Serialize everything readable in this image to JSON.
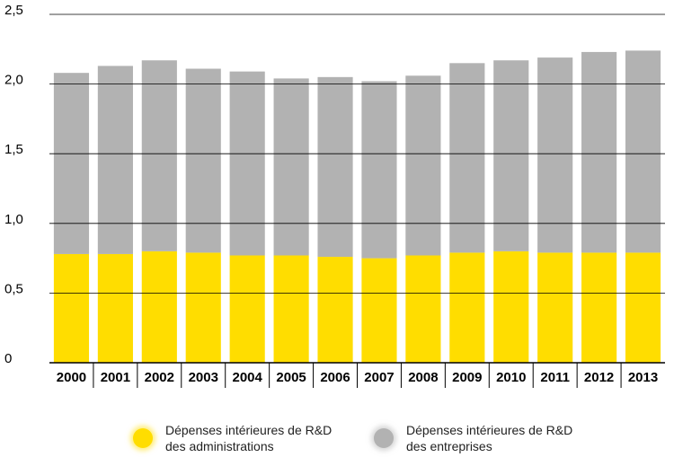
{
  "chart_data": {
    "type": "stacked_bar",
    "categories": [
      "2000",
      "2001",
      "2002",
      "2003",
      "2004",
      "2005",
      "2006",
      "2007",
      "2008",
      "2009",
      "2010",
      "2011",
      "2012",
      "2013"
    ],
    "series": [
      {
        "name": "Dépenses intérieures de R&D des administrations",
        "color": "#ffdd00",
        "values": [
          0.78,
          0.78,
          0.8,
          0.79,
          0.77,
          0.77,
          0.76,
          0.75,
          0.77,
          0.79,
          0.8,
          0.79,
          0.79,
          0.79
        ]
      },
      {
        "name": "Dépenses intérieures de R&D des entreprises",
        "color": "#b2b2b2",
        "values": [
          1.3,
          1.35,
          1.37,
          1.32,
          1.32,
          1.27,
          1.29,
          1.27,
          1.29,
          1.36,
          1.37,
          1.4,
          1.44,
          1.45
        ]
      }
    ],
    "ylim": [
      0,
      2.5
    ],
    "yticks": [
      0,
      {
        "value": 0.5,
        "label": "0,5"
      },
      {
        "value": 1,
        "label": "1,0"
      },
      {
        "value": 1.5,
        "label": "1,5"
      },
      {
        "value": 2,
        "label": "2,0"
      },
      {
        "value": 2.5,
        "label": "2,5"
      }
    ],
    "grid": true
  }
}
